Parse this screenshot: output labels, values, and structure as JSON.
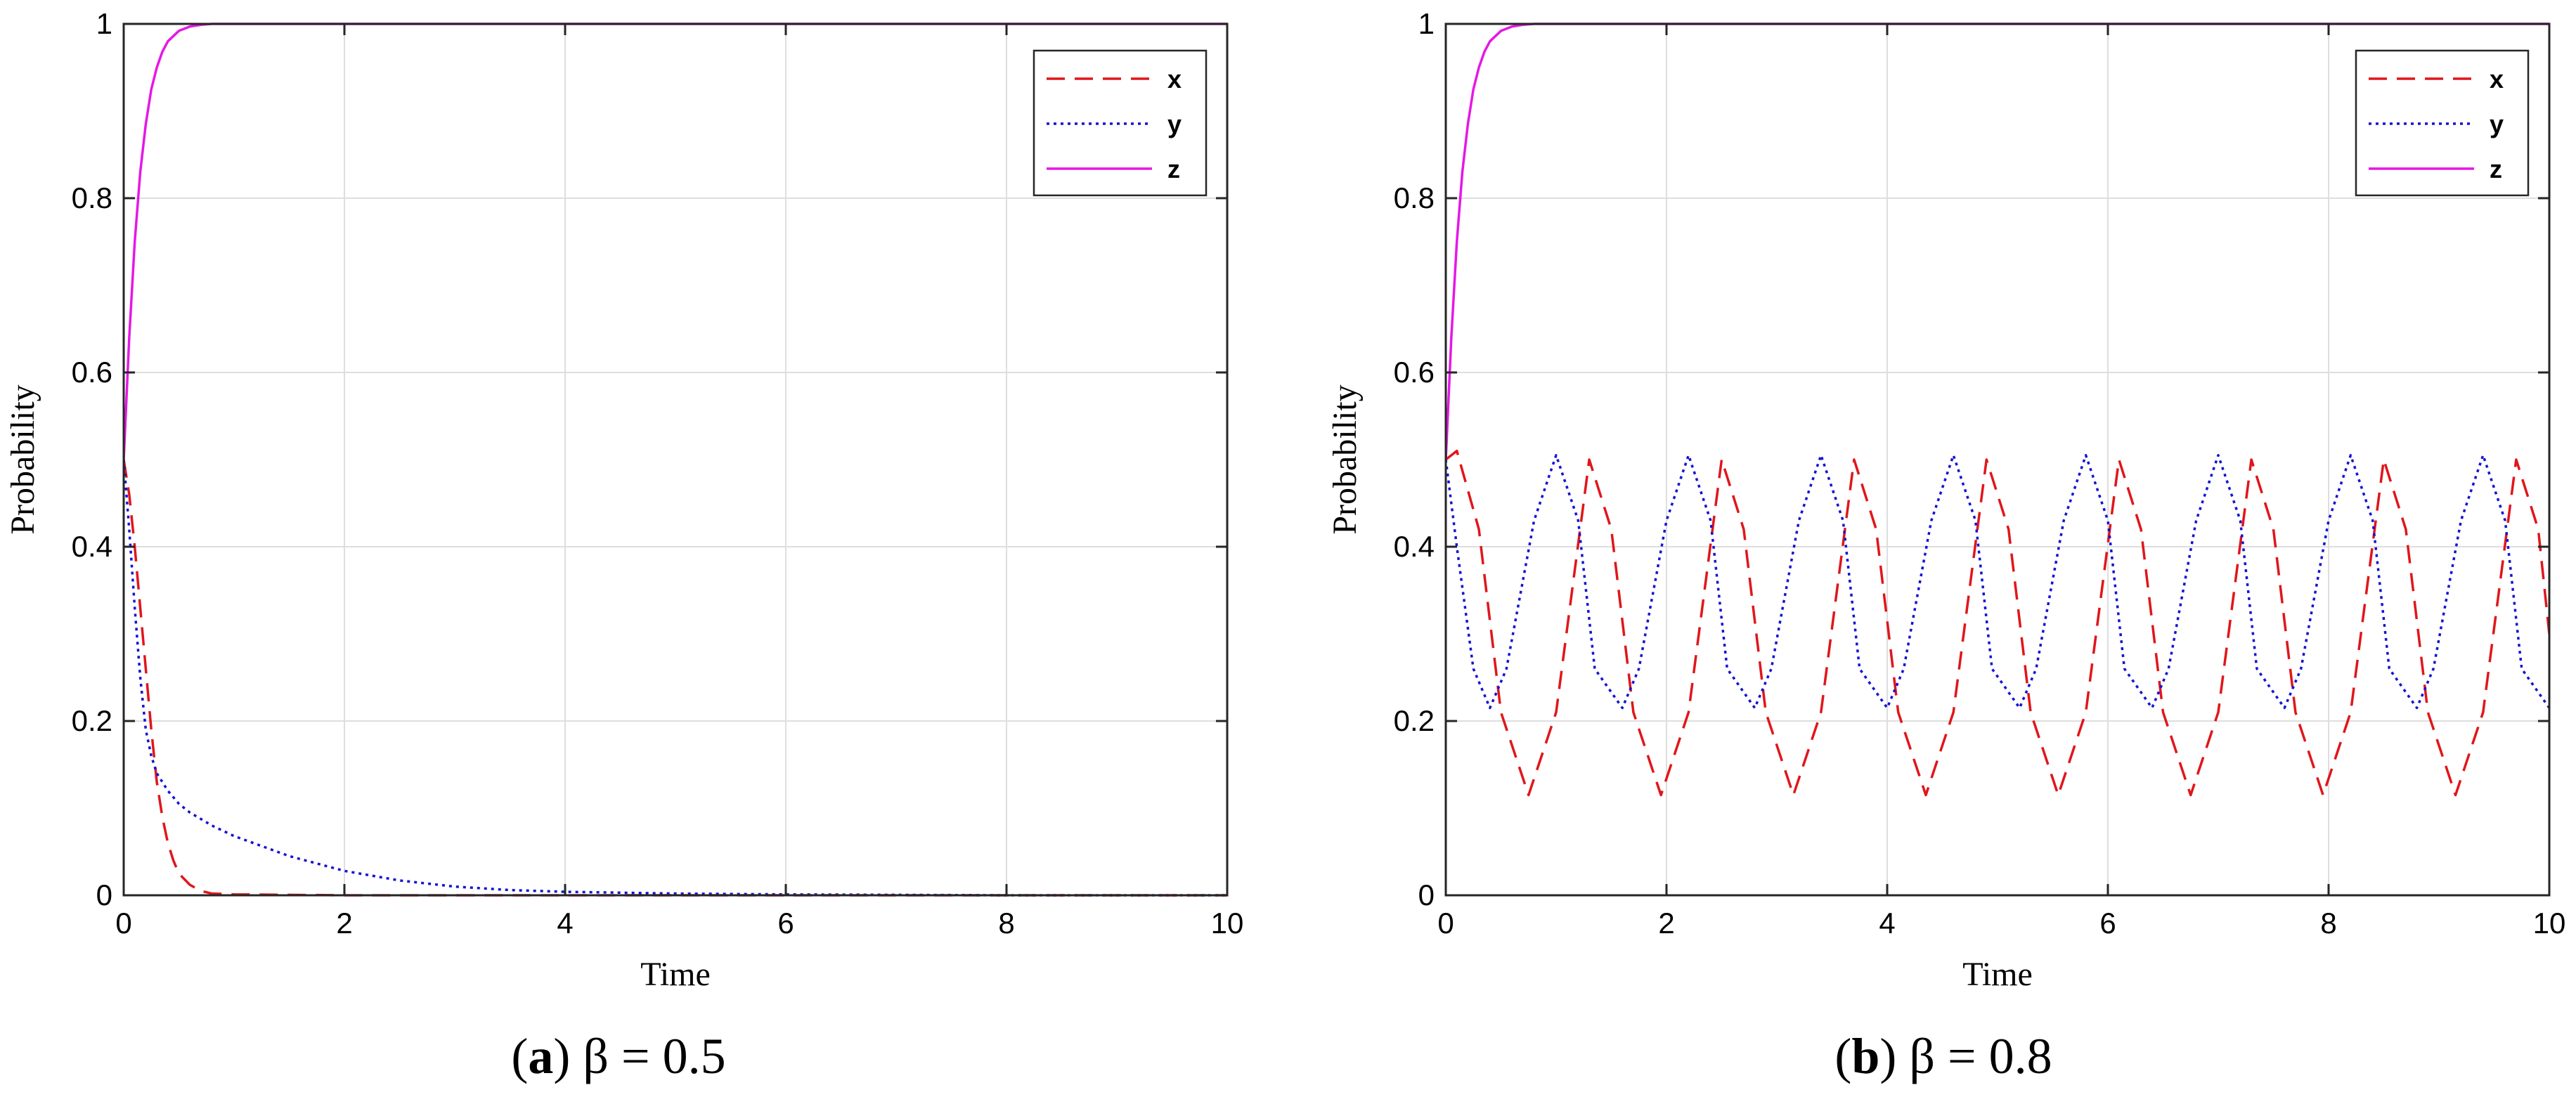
{
  "chart_data": [
    {
      "type": "line",
      "panel_letter": "a",
      "caption_text": "β = 0.5",
      "xlabel": "Time",
      "ylabel": "Probability",
      "xlim": [
        0,
        10
      ],
      "ylim": [
        0,
        1
      ],
      "xticks": [
        0,
        2,
        4,
        6,
        8,
        10
      ],
      "yticks": [
        0,
        0.2,
        0.4,
        0.6,
        0.8,
        1
      ],
      "grid": true,
      "legend_position": "top-right",
      "series": [
        {
          "name": "x",
          "color": "#e0161b",
          "style": "dashed",
          "x": [
            0,
            0.05,
            0.1,
            0.15,
            0.2,
            0.25,
            0.3,
            0.35,
            0.4,
            0.45,
            0.5,
            0.6,
            0.7,
            0.8,
            1,
            2,
            4,
            6,
            8,
            10
          ],
          "y": [
            0.5,
            0.46,
            0.4,
            0.33,
            0.26,
            0.19,
            0.13,
            0.09,
            0.06,
            0.04,
            0.025,
            0.012,
            0.005,
            0.002,
            0.001,
            0,
            0,
            0,
            0,
            0
          ]
        },
        {
          "name": "y",
          "color": "#1414d2",
          "style": "dotted",
          "x": [
            0,
            0.05,
            0.1,
            0.15,
            0.2,
            0.25,
            0.3,
            0.4,
            0.5,
            0.6,
            0.8,
            1,
            1.5,
            2,
            2.5,
            3,
            3.5,
            4,
            5,
            6,
            8,
            10
          ],
          "y": [
            0.5,
            0.42,
            0.33,
            0.25,
            0.19,
            0.16,
            0.14,
            0.12,
            0.105,
            0.095,
            0.08,
            0.068,
            0.045,
            0.028,
            0.017,
            0.01,
            0.006,
            0.004,
            0.002,
            0.001,
            0,
            0
          ]
        },
        {
          "name": "z",
          "color": "#e617e6",
          "style": "solid",
          "x": [
            0,
            0.05,
            0.1,
            0.15,
            0.2,
            0.25,
            0.3,
            0.35,
            0.4,
            0.5,
            0.6,
            0.7,
            0.8,
            1,
            2,
            4,
            6,
            8,
            10
          ],
          "y": [
            0.5,
            0.64,
            0.75,
            0.83,
            0.885,
            0.925,
            0.95,
            0.968,
            0.98,
            0.992,
            0.997,
            0.999,
            1,
            1,
            1,
            1,
            1,
            1,
            1
          ]
        }
      ]
    },
    {
      "type": "line",
      "panel_letter": "b",
      "caption_text": "β = 0.8",
      "xlabel": "Time",
      "ylabel": "Probability",
      "xlim": [
        0,
        10
      ],
      "ylim": [
        0,
        1
      ],
      "xticks": [
        0,
        2,
        4,
        6,
        8,
        10
      ],
      "yticks": [
        0,
        0.2,
        0.4,
        0.6,
        0.8,
        1
      ],
      "grid": true,
      "legend_position": "top-right",
      "series": [
        {
          "name": "x",
          "color": "#e0161b",
          "style": "dashed",
          "x": [
            0,
            0.1,
            0.3,
            0.5,
            0.75,
            1,
            1.3,
            1.5,
            1.7,
            1.95,
            2.2,
            2.5,
            2.7,
            2.9,
            3.15,
            3.4,
            3.7,
            3.9,
            4.1,
            4.35,
            4.6,
            4.9,
            5.1,
            5.3,
            5.55,
            5.8,
            6.1,
            6.3,
            6.5,
            6.75,
            7.0,
            7.3,
            7.5,
            7.7,
            7.95,
            8.2,
            8.5,
            8.7,
            8.9,
            9.15,
            9.4,
            9.7,
            9.9,
            10
          ],
          "y": [
            0.5,
            0.51,
            0.42,
            0.21,
            0.115,
            0.21,
            0.5,
            0.42,
            0.21,
            0.115,
            0.21,
            0.5,
            0.42,
            0.21,
            0.115,
            0.21,
            0.5,
            0.42,
            0.21,
            0.115,
            0.21,
            0.5,
            0.42,
            0.21,
            0.115,
            0.21,
            0.5,
            0.42,
            0.21,
            0.115,
            0.21,
            0.5,
            0.42,
            0.21,
            0.115,
            0.21,
            0.5,
            0.42,
            0.21,
            0.115,
            0.21,
            0.5,
            0.42,
            0.3
          ]
        },
        {
          "name": "y",
          "color": "#1414d2",
          "style": "dotted",
          "x": [
            0,
            0.1,
            0.25,
            0.4,
            0.55,
            0.8,
            1.0,
            1.2,
            1.35,
            1.6,
            1.75,
            2.0,
            2.2,
            2.4,
            2.55,
            2.8,
            2.95,
            3.2,
            3.4,
            3.6,
            3.75,
            4.0,
            4.15,
            4.4,
            4.6,
            4.8,
            4.95,
            5.2,
            5.35,
            5.6,
            5.8,
            6.0,
            6.15,
            6.4,
            6.55,
            6.8,
            7.0,
            7.2,
            7.35,
            7.6,
            7.75,
            8.0,
            8.2,
            8.4,
            8.55,
            8.8,
            8.95,
            9.2,
            9.4,
            9.6,
            9.75,
            10
          ],
          "y": [
            0.5,
            0.4,
            0.26,
            0.215,
            0.26,
            0.43,
            0.505,
            0.43,
            0.26,
            0.215,
            0.26,
            0.43,
            0.505,
            0.43,
            0.26,
            0.215,
            0.26,
            0.43,
            0.505,
            0.43,
            0.26,
            0.215,
            0.26,
            0.43,
            0.505,
            0.43,
            0.26,
            0.215,
            0.26,
            0.43,
            0.505,
            0.43,
            0.26,
            0.215,
            0.26,
            0.43,
            0.505,
            0.43,
            0.26,
            0.215,
            0.26,
            0.43,
            0.505,
            0.43,
            0.26,
            0.215,
            0.26,
            0.43,
            0.505,
            0.43,
            0.26,
            0.215
          ]
        },
        {
          "name": "z",
          "color": "#e617e6",
          "style": "solid",
          "x": [
            0,
            0.05,
            0.1,
            0.15,
            0.2,
            0.25,
            0.3,
            0.35,
            0.4,
            0.5,
            0.6,
            0.7,
            0.8,
            1,
            2,
            4,
            6,
            8,
            10
          ],
          "y": [
            0.5,
            0.64,
            0.75,
            0.83,
            0.885,
            0.925,
            0.95,
            0.968,
            0.98,
            0.992,
            0.997,
            0.999,
            1,
            1,
            1,
            1,
            1,
            1,
            1
          ]
        }
      ]
    }
  ]
}
